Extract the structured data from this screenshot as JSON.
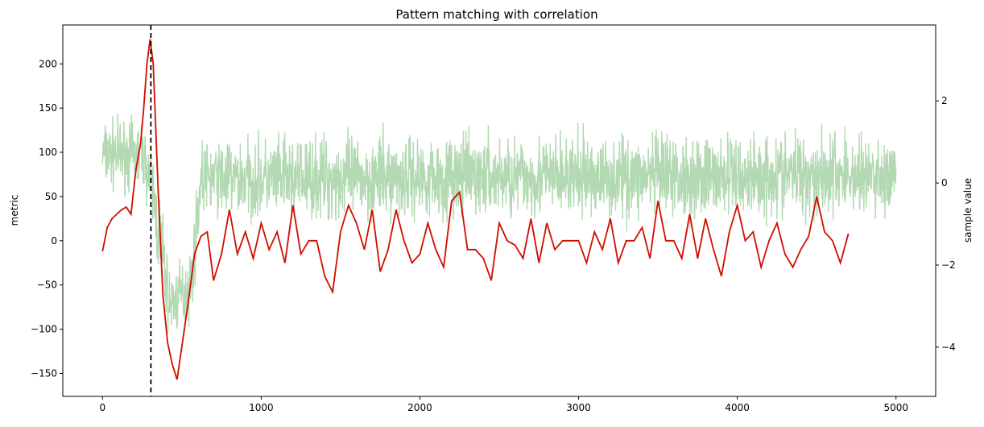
{
  "chart_data": {
    "type": "line",
    "title": "Pattern matching with correlation",
    "ylabel": "metric",
    "y2label": "sample value",
    "xlim": [
      -250,
      5250
    ],
    "ylim": [
      -176,
      244
    ],
    "y2lim": [
      -5.2,
      3.85
    ],
    "xticks": [
      0,
      1000,
      2000,
      3000,
      4000,
      5000
    ],
    "yticks": [
      -150,
      -100,
      -50,
      0,
      50,
      100,
      150,
      200
    ],
    "y2ticks": [
      -4,
      -2,
      0,
      2
    ],
    "grid": false,
    "marker_line": {
      "x": 305,
      "style": "dashed",
      "color": "#000000"
    },
    "series": [
      {
        "axis": "right",
        "color": "#b3d9b3",
        "x_start": 0,
        "x_end": 5000,
        "points": 2500,
        "sample_envelope": [
          [
            0,
            -0.5,
            1.9
          ],
          [
            250,
            -0.5,
            1.9
          ],
          [
            300,
            -1.0,
            1.2
          ],
          [
            350,
            -2.9,
            0.9
          ],
          [
            420,
            -4.1,
            -1.8
          ],
          [
            480,
            -4.0,
            -1.6
          ],
          [
            560,
            -3.8,
            -1.1
          ],
          [
            620,
            -1.0,
            1.3
          ],
          [
            800,
            -1.3,
            1.5
          ],
          [
            1000,
            -1.3,
            1.5
          ],
          [
            1500,
            -1.4,
            1.6
          ],
          [
            2000,
            -1.3,
            1.6
          ],
          [
            2500,
            -1.3,
            1.6
          ],
          [
            3000,
            -1.3,
            1.6
          ],
          [
            3500,
            -1.3,
            1.6
          ],
          [
            4000,
            -1.3,
            1.6
          ],
          [
            4500,
            -1.3,
            1.8
          ],
          [
            5000,
            -1.3,
            1.5
          ]
        ]
      },
      {
        "axis": "left",
        "color": "#ff0000",
        "x": [
          0,
          30,
          60,
          90,
          120,
          150,
          180,
          210,
          240,
          260,
          280,
          300,
          320,
          350,
          380,
          410,
          440,
          470,
          500,
          540,
          580,
          620,
          660,
          700,
          750,
          800,
          850,
          900,
          950,
          1000,
          1050,
          1100,
          1150,
          1200,
          1250,
          1300,
          1350,
          1400,
          1450,
          1500,
          1550,
          1600,
          1650,
          1700,
          1750,
          1800,
          1850,
          1900,
          1950,
          2000,
          2050,
          2100,
          2150,
          2200,
          2250,
          2300,
          2350,
          2400,
          2450,
          2500,
          2550,
          2600,
          2650,
          2700,
          2750,
          2800,
          2850,
          2900,
          2950,
          3000,
          3050,
          3100,
          3150,
          3200,
          3250,
          3300,
          3350,
          3400,
          3450,
          3500,
          3550,
          3600,
          3650,
          3700,
          3750,
          3800,
          3850,
          3900,
          3950,
          4000,
          4050,
          4100,
          4150,
          4200,
          4250,
          4300,
          4350,
          4400,
          4450,
          4500,
          4550,
          4600,
          4650,
          4700
        ],
        "y": [
          -12,
          15,
          25,
          30,
          35,
          38,
          30,
          80,
          110,
          150,
          200,
          228,
          200,
          60,
          -60,
          -115,
          -140,
          -157,
          -120,
          -70,
          -15,
          5,
          10,
          -45,
          -15,
          35,
          -15,
          10,
          -20,
          20,
          -10,
          10,
          -25,
          40,
          -15,
          0,
          0,
          -40,
          -58,
          10,
          40,
          20,
          -10,
          35,
          -35,
          -10,
          35,
          0,
          -25,
          -15,
          20,
          -10,
          -30,
          45,
          55,
          -10,
          -10,
          -20,
          -45,
          20,
          0,
          -5,
          -20,
          25,
          -25,
          20,
          -10,
          0,
          0,
          0,
          -25,
          10,
          -10,
          25,
          -25,
          0,
          0,
          15,
          -20,
          45,
          0,
          0,
          -20,
          30,
          -20,
          25,
          -10,
          -40,
          10,
          40,
          0,
          10,
          -30,
          0,
          20,
          -15,
          -30,
          -10,
          5,
          50,
          10,
          0,
          -25,
          8
        ]
      }
    ]
  }
}
